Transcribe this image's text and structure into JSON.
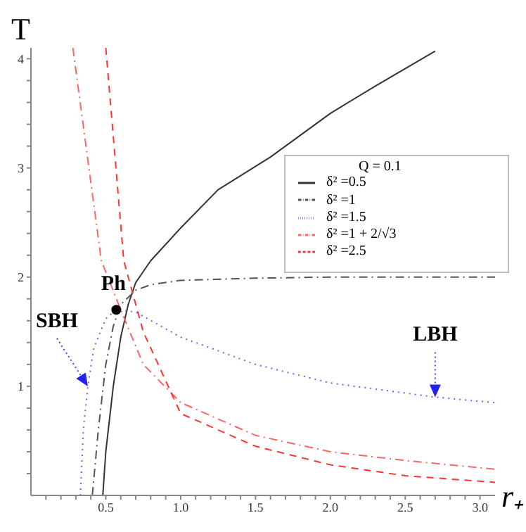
{
  "chart_data": {
    "type": "line",
    "xlabel": "r₊",
    "ylabel": "T",
    "legend_title": "Q = 0.1",
    "legend": "top right",
    "marker": "none",
    "grid": false,
    "xlim": [
      0,
      3.1
    ],
    "ylim": [
      0,
      4.1
    ],
    "xticks": [
      {
        "value": 0.1,
        "label": null
      },
      {
        "value": 0.2,
        "label": null
      },
      {
        "value": 0.3,
        "label": null
      },
      {
        "value": 0.4,
        "label": null
      },
      0.5,
      {
        "value": 0.6,
        "label": null
      },
      {
        "value": 0.7,
        "label": null
      },
      {
        "value": 0.8,
        "label": null
      },
      {
        "value": 0.9,
        "label": null
      },
      {
        "value": 1.0,
        "label": "1.0"
      },
      {
        "value": 1.1,
        "label": null
      },
      {
        "value": 1.2,
        "label": null
      },
      {
        "value": 1.3,
        "label": null
      },
      {
        "value": 1.4,
        "label": null
      },
      1.5,
      {
        "value": 1.6,
        "label": null
      },
      {
        "value": 1.7,
        "label": null
      },
      {
        "value": 1.8,
        "label": null
      },
      {
        "value": 1.9,
        "label": null
      },
      {
        "value": 2.0,
        "label": "2.0"
      },
      {
        "value": 2.1,
        "label": null
      },
      {
        "value": 2.2,
        "label": null
      },
      {
        "value": 2.3,
        "label": null
      },
      {
        "value": 2.4,
        "label": null
      },
      2.5,
      {
        "value": 2.6,
        "label": null
      },
      {
        "value": 2.7,
        "label": null
      },
      {
        "value": 2.8,
        "label": null
      },
      {
        "value": 2.9,
        "label": null
      },
      {
        "value": 3.0,
        "label": "3.0"
      }
    ],
    "yticks": [
      {
        "value": 0.2,
        "label": null
      },
      {
        "value": 0.4,
        "label": null
      },
      {
        "value": 0.6,
        "label": null
      },
      {
        "value": 0.8,
        "label": null
      },
      1,
      {
        "value": 1.2,
        "label": null
      },
      {
        "value": 1.4,
        "label": null
      },
      {
        "value": 1.6,
        "label": null
      },
      {
        "value": 1.8,
        "label": null
      },
      2,
      {
        "value": 2.2,
        "label": null
      },
      {
        "value": 2.4,
        "label": null
      },
      {
        "value": 2.6,
        "label": null
      },
      {
        "value": 2.8,
        "label": null
      },
      3,
      {
        "value": 3.2,
        "label": null
      },
      {
        "value": 3.4,
        "label": null
      },
      {
        "value": 3.6,
        "label": null
      },
      {
        "value": 3.8,
        "label": null
      },
      4
    ],
    "series": [
      {
        "name": "δ² =0.5",
        "color": "#333333",
        "line_style": "solid",
        "x": [
          0.48,
          0.5,
          0.55,
          0.6,
          0.65,
          0.7,
          0.8,
          1.0,
          1.25,
          1.6,
          2.0,
          2.3,
          2.7
        ],
        "values": [
          0,
          0.4,
          1.0,
          1.45,
          1.75,
          1.95,
          2.15,
          2.45,
          2.8,
          3.1,
          3.5,
          3.75,
          4.07
        ]
      },
      {
        "name": "δ² =1",
        "color": "#555555",
        "line_style": "dashdot",
        "x": [
          0.41,
          0.45,
          0.5,
          0.55,
          0.6,
          0.7,
          0.8,
          1.0,
          1.5,
          2.0,
          3.1
        ],
        "values": [
          0,
          0.6,
          1.2,
          1.55,
          1.75,
          1.88,
          1.93,
          1.97,
          1.99,
          2.0,
          2.0
        ]
      },
      {
        "name": "δ² =1.5",
        "color": "#6666ff",
        "line_style": "dotted",
        "x": [
          0.33,
          0.35,
          0.38,
          0.42,
          0.5,
          0.57,
          0.7,
          1.0,
          1.5,
          2.0,
          2.7,
          3.1
        ],
        "values": [
          0,
          0.6,
          1.0,
          1.35,
          1.62,
          1.7,
          1.68,
          1.45,
          1.2,
          1.03,
          0.9,
          0.85
        ]
      },
      {
        "name": "δ² =1 + 2/√3",
        "color": "#ff6666",
        "line_style": "dashdot",
        "x": [
          0.28,
          0.47,
          0.6,
          0.75,
          1.0,
          1.5,
          2.0,
          2.5,
          3.1
        ],
        "values": [
          4.1,
          2.15,
          1.7,
          1.2,
          0.85,
          0.55,
          0.4,
          0.32,
          0.24
        ]
      },
      {
        "name": "δ² =2.5",
        "color": "#ff3333",
        "line_style": "dashed",
        "x": [
          0.5,
          0.62,
          0.75,
          1.0,
          1.5,
          2.0,
          2.5,
          3.1
        ],
        "values": [
          4.1,
          2.15,
          1.5,
          0.75,
          0.45,
          0.28,
          0.18,
          0.12
        ]
      }
    ],
    "annotations": [
      {
        "text": "Ph",
        "x": 0.57,
        "y": 1.7
      },
      {
        "text": "SBH",
        "x": 0.38,
        "y": 1.0
      },
      {
        "text": "LBH",
        "x": 2.7,
        "y": 0.9
      }
    ]
  }
}
